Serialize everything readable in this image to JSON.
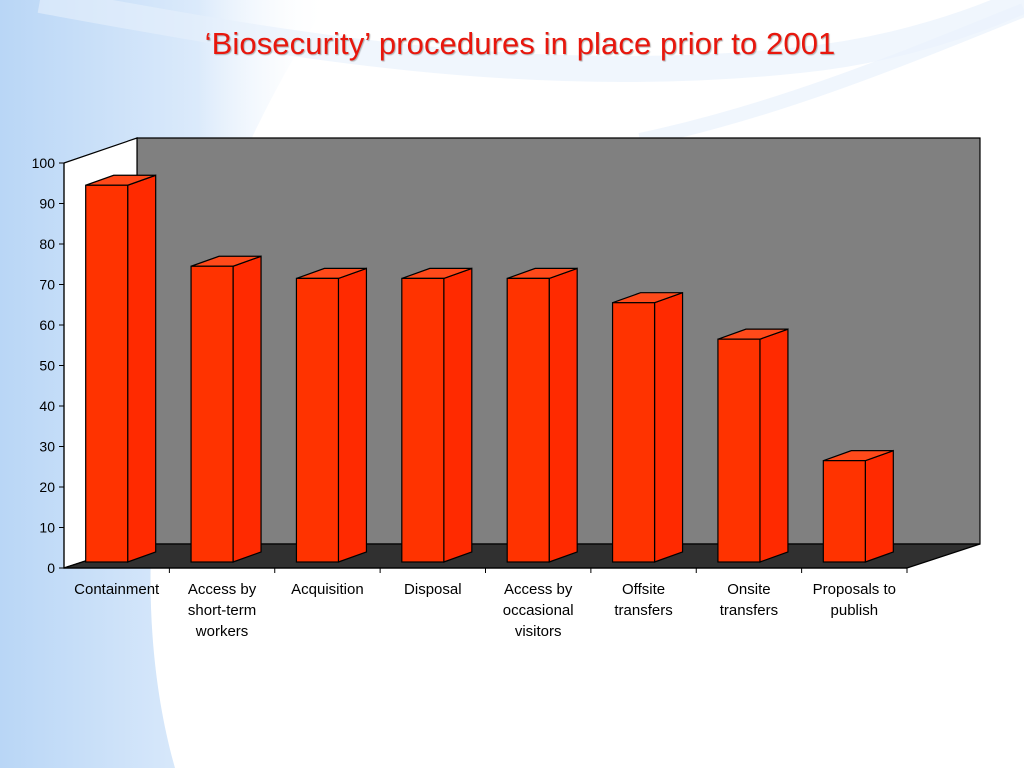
{
  "title": "‘Biosecurity’ procedures in place prior to 2001",
  "colors": {
    "bar_front": "#ff3300",
    "bar_side": "#ff2a00",
    "bar_top": "#ff4a1a",
    "wall": "#808080",
    "floor": "#303030",
    "title": "#e8170d"
  },
  "chart_data": {
    "type": "bar",
    "title": "‘Biosecurity’ procedures in place prior to 2001",
    "categories": [
      [
        "Containment"
      ],
      [
        "Access by",
        "short-term",
        "workers"
      ],
      [
        "Acquisition"
      ],
      [
        "Disposal"
      ],
      [
        "Access by",
        "occasional",
        "visitors"
      ],
      [
        "Offsite",
        "transfers"
      ],
      [
        "Onsite",
        "transfers"
      ],
      [
        "Proposals to",
        "publish"
      ]
    ],
    "values": [
      95,
      75,
      72,
      72,
      72,
      66,
      57,
      27
    ],
    "ylim": [
      0,
      100
    ],
    "yticks": [
      0,
      10,
      20,
      30,
      40,
      50,
      60,
      70,
      80,
      90,
      100
    ],
    "xlabel": "",
    "ylabel": "",
    "grid": false,
    "legend": "none"
  }
}
